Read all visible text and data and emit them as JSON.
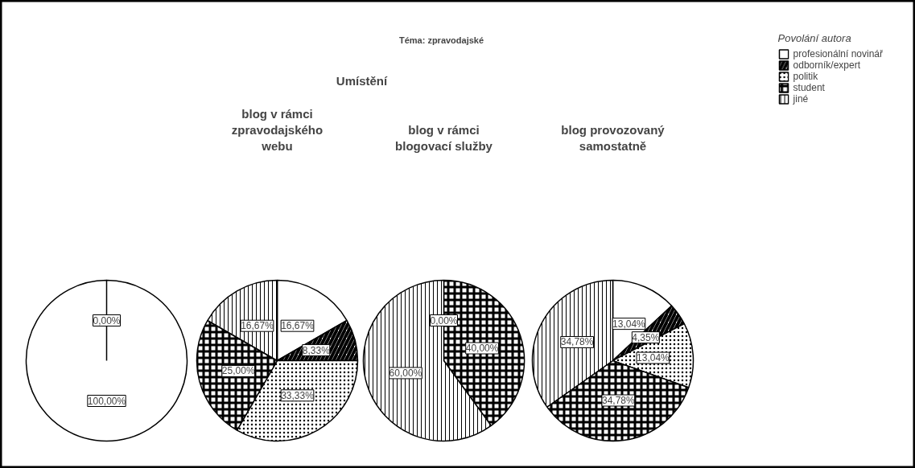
{
  "chart_data": [
    {
      "type": "pie",
      "legend_title": "Povolání autora",
      "legend": "top right",
      "categories": [
        "profesionální novinář",
        "odborník/expert",
        "politik",
        "student",
        "jiné"
      ],
      "values": [
        100,
        null,
        null,
        null,
        0
      ],
      "value_labels": [
        "100,00%",
        null,
        null,
        null,
        "0,00%"
      ],
      "colors": [
        "#ffffff",
        "#ffffff",
        "#ffffff",
        "#ffffff",
        "#ffffff"
      ]
    },
    {
      "type": "pie",
      "title": "blog v rámci\nzpravodajského\nwebu",
      "annotations": [
        "Umístění"
      ],
      "categories": [
        null,
        null,
        null,
        null,
        null
      ],
      "values": [
        16.67,
        8.33,
        33.33,
        25.0,
        16.67
      ],
      "value_labels": [
        "16,67%",
        "8,33%",
        "33,33%",
        "25,00%",
        "16,67%"
      ],
      "colors": [
        "#ffffff",
        "#ffffff",
        "#ffffff",
        "#ffffff",
        "#ffffff"
      ]
    },
    {
      "type": "pie",
      "title": "blog v rámci\nblogovací služby",
      "annotations": [
        "Téma: zpravodajské"
      ],
      "categories": [
        null,
        null,
        null,
        null,
        null
      ],
      "values": [
        0,
        null,
        null,
        40.0,
        60.0
      ],
      "value_labels": [
        "0,00%",
        null,
        null,
        "40,00%",
        "60,00%"
      ],
      "colors": [
        "#ffffff",
        "#ffffff",
        "#ffffff",
        "#ffffff",
        "#ffffff"
      ]
    },
    {
      "type": "pie",
      "title": "blog provozovaný\nsamostatně",
      "categories": [
        null,
        null,
        null,
        null,
        null
      ],
      "values": [
        13.04,
        4.35,
        13.04,
        34.78,
        34.78
      ],
      "value_labels": [
        "13,04%",
        "4,35%",
        "13,04%",
        "34,78%",
        "34,78%"
      ],
      "colors": [
        "#ffffff",
        "#ffffff",
        "#ffffff",
        "#ffffff",
        "#ffffff"
      ]
    }
  ]
}
